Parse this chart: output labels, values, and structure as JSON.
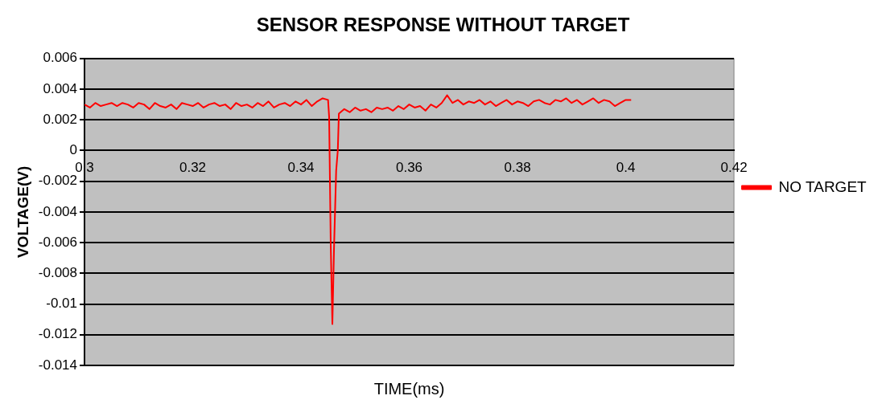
{
  "chart_data": {
    "type": "line",
    "title": "SENSOR RESPONSE WITHOUT TARGET",
    "xlabel": "TIME(ms)",
    "ylabel": "VOLTAGE(V)",
    "xlim": [
      0.3,
      0.42
    ],
    "xticks": [
      0.3,
      0.32,
      0.34,
      0.36,
      0.38,
      0.4,
      0.42
    ],
    "ylim": [
      -0.014,
      0.006
    ],
    "yticks": [
      -0.014,
      -0.012,
      -0.01,
      -0.008,
      -0.006,
      -0.004,
      -0.002,
      0,
      0.002,
      0.004,
      0.006
    ],
    "grid": "y",
    "legend": "right",
    "marker": "none",
    "line_style": "solid",
    "series": [
      {
        "name": "NO TARGET",
        "color": "#ff0000",
        "x": [
          0.3,
          0.301,
          0.302,
          0.303,
          0.304,
          0.305,
          0.306,
          0.307,
          0.308,
          0.309,
          0.31,
          0.311,
          0.312,
          0.313,
          0.314,
          0.315,
          0.316,
          0.317,
          0.318,
          0.319,
          0.32,
          0.321,
          0.322,
          0.323,
          0.324,
          0.325,
          0.326,
          0.327,
          0.328,
          0.329,
          0.33,
          0.331,
          0.332,
          0.333,
          0.334,
          0.335,
          0.336,
          0.337,
          0.338,
          0.339,
          0.34,
          0.341,
          0.342,
          0.343,
          0.344,
          0.345,
          0.3452,
          0.3455,
          0.3458,
          0.3461,
          0.3465,
          0.3468,
          0.347,
          0.348,
          0.349,
          0.35,
          0.351,
          0.352,
          0.353,
          0.354,
          0.355,
          0.356,
          0.357,
          0.358,
          0.359,
          0.36,
          0.361,
          0.362,
          0.363,
          0.364,
          0.365,
          0.366,
          0.367,
          0.368,
          0.369,
          0.37,
          0.371,
          0.372,
          0.373,
          0.374,
          0.375,
          0.376,
          0.377,
          0.378,
          0.379,
          0.38,
          0.381,
          0.382,
          0.383,
          0.384,
          0.385,
          0.386,
          0.387,
          0.388,
          0.389,
          0.39,
          0.391,
          0.392,
          0.393,
          0.394,
          0.395,
          0.396,
          0.397,
          0.398,
          0.399,
          0.4,
          0.401
        ],
        "values": [
          0.003,
          0.0028,
          0.0031,
          0.0029,
          0.003,
          0.0031,
          0.0029,
          0.0031,
          0.003,
          0.0028,
          0.0031,
          0.003,
          0.0027,
          0.0031,
          0.0029,
          0.0028,
          0.003,
          0.0027,
          0.0031,
          0.003,
          0.0029,
          0.0031,
          0.0028,
          0.003,
          0.0031,
          0.0029,
          0.003,
          0.0027,
          0.0031,
          0.0029,
          0.003,
          0.0028,
          0.0031,
          0.0029,
          0.0032,
          0.0028,
          0.003,
          0.0031,
          0.0029,
          0.0032,
          0.003,
          0.0033,
          0.0029,
          0.0032,
          0.0034,
          0.0033,
          0.0022,
          -0.0062,
          -0.0113,
          -0.0064,
          -0.0013,
          0.0,
          0.0024,
          0.0027,
          0.0025,
          0.0028,
          0.0026,
          0.0027,
          0.0025,
          0.0028,
          0.0027,
          0.0028,
          0.0026,
          0.0029,
          0.0027,
          0.003,
          0.0028,
          0.0029,
          0.0026,
          0.003,
          0.0028,
          0.0031,
          0.0036,
          0.0031,
          0.0033,
          0.003,
          0.0032,
          0.0031,
          0.0033,
          0.003,
          0.0032,
          0.0029,
          0.0031,
          0.0033,
          0.003,
          0.0032,
          0.0031,
          0.0029,
          0.0032,
          0.0033,
          0.0031,
          0.003,
          0.0033,
          0.0032,
          0.0034,
          0.0031,
          0.0033,
          0.003,
          0.0032,
          0.0034,
          0.0031,
          0.0033,
          0.0032,
          0.0029,
          0.0031,
          0.0033,
          0.0033
        ]
      }
    ]
  }
}
